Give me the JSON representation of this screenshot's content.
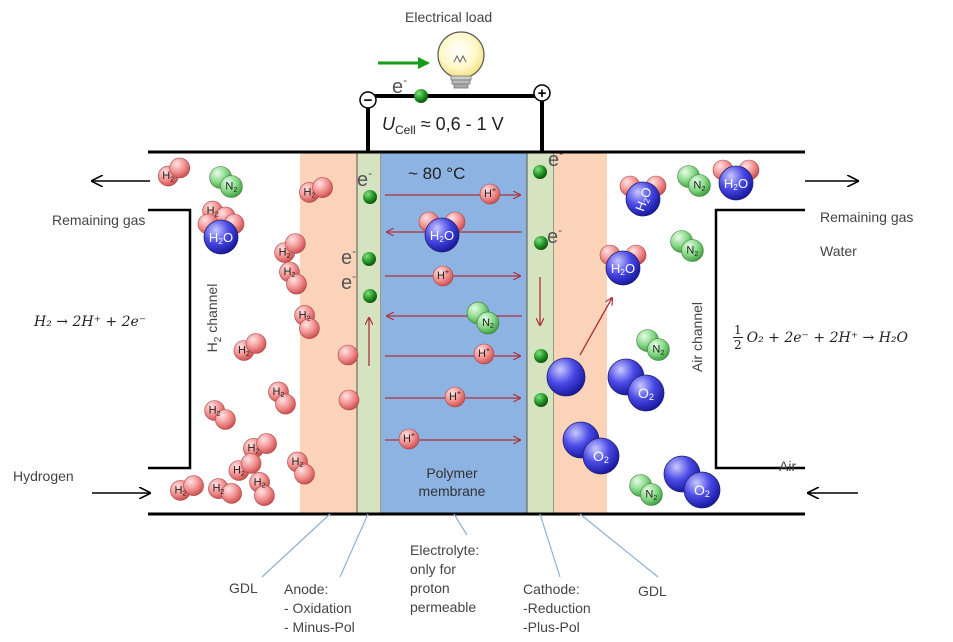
{
  "top": {
    "load": "Electrical load",
    "electron": "e-",
    "minus": "−",
    "plus": "+",
    "voltage_symbol": "U",
    "voltage_sub": "Cell",
    "voltage_value": "≈ 0,6 - 1 V"
  },
  "left": {
    "remaining": "Remaining  gas",
    "hydrogen": "Hydrogen",
    "channel": "H2 channel",
    "reaction": "H₂ → 2H⁺ + 2e⁻"
  },
  "right": {
    "remaining": "Remaining  gas",
    "water": "Water",
    "air": "Air",
    "channel": "Air channel",
    "reaction_frac_num": "1",
    "reaction_frac_den": "2",
    "reaction": "O₂ + 2e⁻ + 2H⁺ → H₂O"
  },
  "center": {
    "temperature": "~ 80 °C",
    "membrane_lines": [
      "Polymer",
      "membrane"
    ]
  },
  "molecules": {
    "h2": "H2",
    "n2": "N2",
    "h2o": "H2O",
    "o2": "O2",
    "hplus": "H+",
    "electron": "e-"
  },
  "bottom": {
    "gdl_left": "GDL",
    "anode": [
      "Anode:",
      "- Oxidation",
      "- Minus-Pol"
    ],
    "electrolyte": [
      "Electrolyte:",
      "only for",
      "proton",
      "permeable"
    ],
    "cathode": [
      "Cathode:",
      "-Reduction",
      "-Plus-Pol"
    ],
    "gdl_right": "GDL"
  },
  "colors": {
    "gdl": "#fbd3b8",
    "electrode": "#d5e3c0",
    "membrane": "#8db3e2",
    "hydrogen_atom": "#f08080",
    "nitrogen_atom": "#7ccf7c",
    "oxygen_atom": "#3a3ad8",
    "electron_dot": "#1a7a1a",
    "arrow_red": "#b0303a",
    "arrow_green": "#1a9a1a"
  }
}
